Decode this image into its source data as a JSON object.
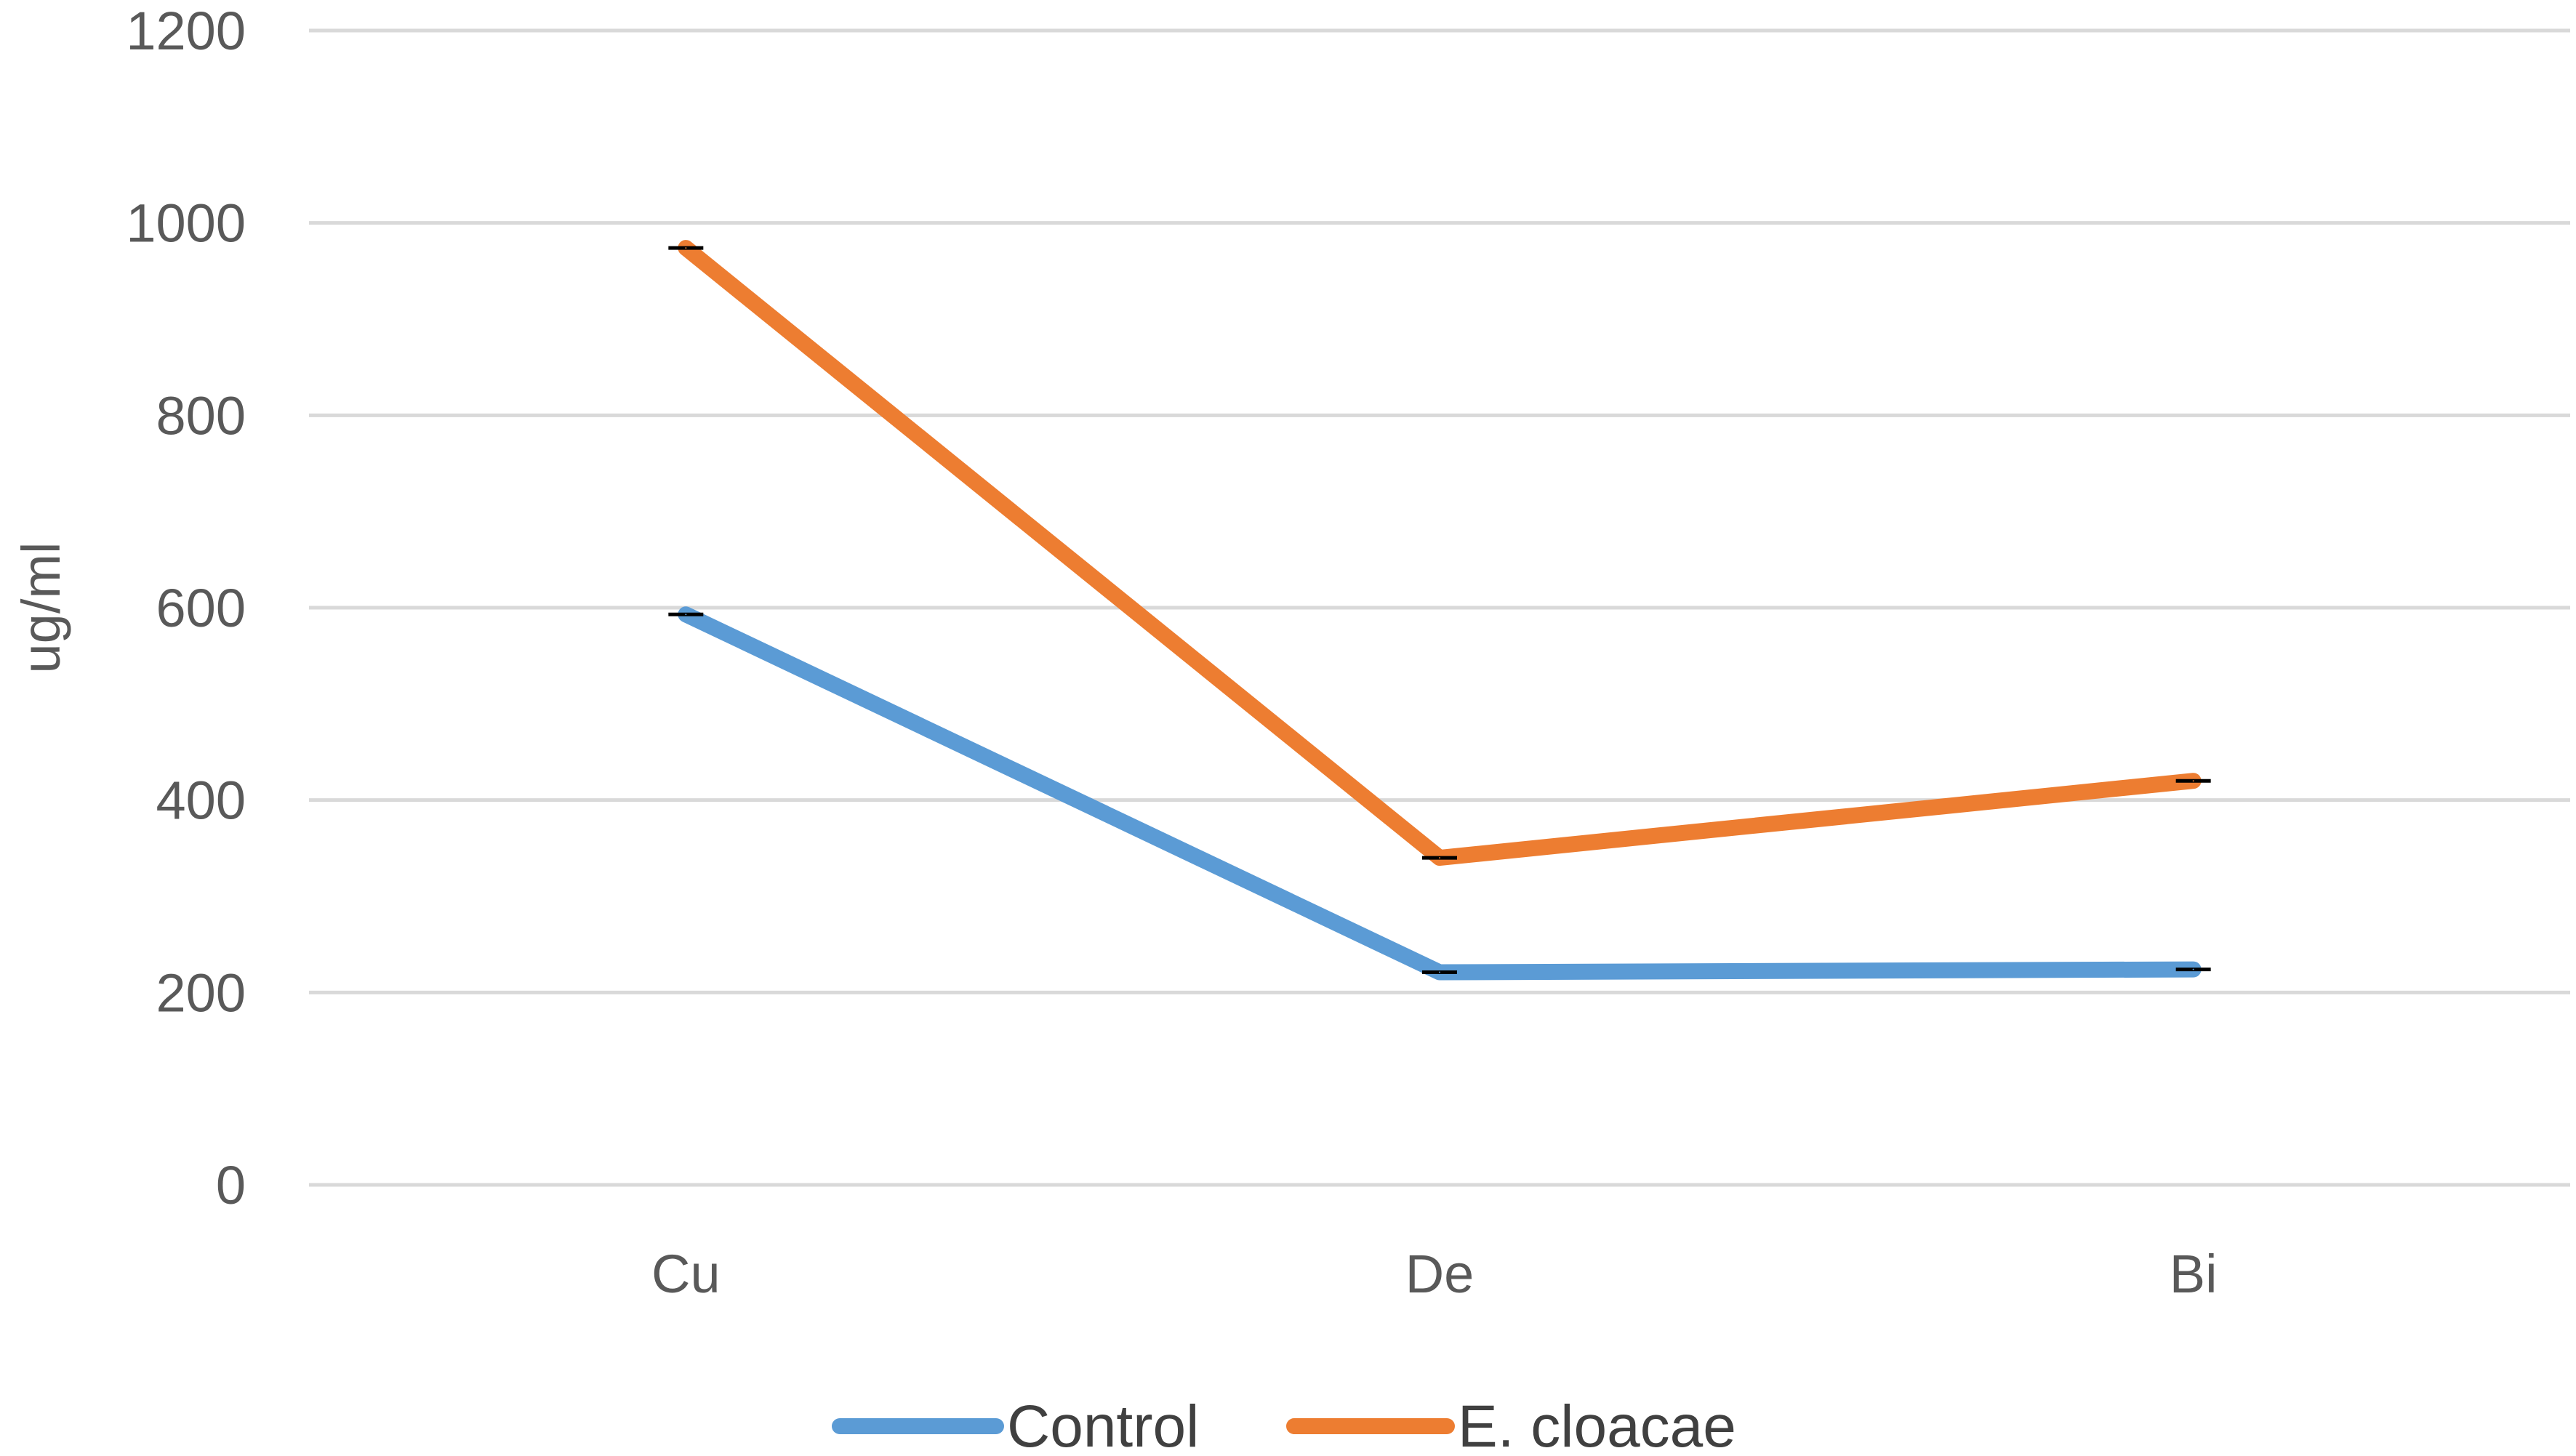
{
  "chart_data": {
    "type": "line",
    "categories": [
      "Cu",
      "De",
      "Bi"
    ],
    "series": [
      {
        "name": "Control",
        "values": [
          593,
          221,
          224
        ],
        "color": "#5b9bd5"
      },
      {
        "name": "E. cloacae",
        "values": [
          974,
          340,
          420
        ],
        "color": "#ed7d31"
      }
    ],
    "title": "",
    "xlabel": "",
    "ylabel": "ug/ml",
    "ylim": [
      0,
      1200
    ],
    "yticks": [
      0,
      200,
      400,
      600,
      800,
      1000,
      1200
    ],
    "gridlines": true,
    "legend_position": "bottom",
    "error_bar_color": "#000000"
  }
}
